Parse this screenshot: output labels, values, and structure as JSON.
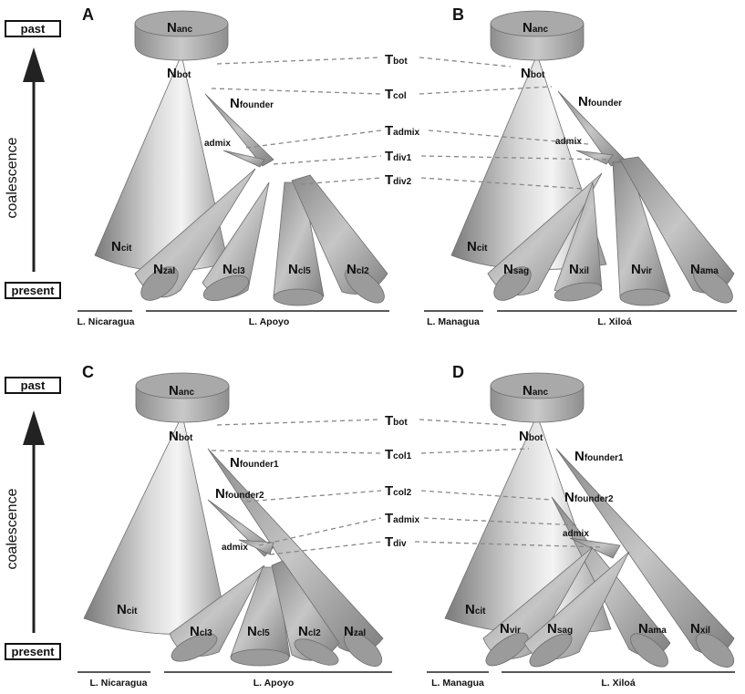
{
  "axis": {
    "top_label": "past",
    "bottom_label": "present",
    "side_label": "coalescence"
  },
  "panels": [
    {
      "letter": "A",
      "lake_left": "L. Nicaragua",
      "lake_right": "L. Apoyo",
      "anc": {
        "N": "N",
        "sub": "anc"
      },
      "bot": {
        "N": "N",
        "sub": "bot"
      },
      "founders": [
        {
          "N": "N",
          "sub": "founder"
        }
      ],
      "admix": "admix",
      "cit": {
        "N": "N",
        "sub": "cit"
      },
      "tips": [
        {
          "N": "N",
          "sub": "zal"
        },
        {
          "N": "N",
          "sub": "cl3"
        },
        {
          "N": "N",
          "sub": "cl5"
        },
        {
          "N": "N",
          "sub": "cl2"
        }
      ]
    },
    {
      "letter": "B",
      "lake_left": "L. Managua",
      "lake_right": "L. Xiloá",
      "anc": {
        "N": "N",
        "sub": "anc"
      },
      "bot": {
        "N": "N",
        "sub": "bot"
      },
      "founders": [
        {
          "N": "N",
          "sub": "founder"
        }
      ],
      "admix": "admix",
      "cit": {
        "N": "N",
        "sub": "cit"
      },
      "tips": [
        {
          "N": "N",
          "sub": "sag"
        },
        {
          "N": "N",
          "sub": "xil"
        },
        {
          "N": "N",
          "sub": "vir"
        },
        {
          "N": "N",
          "sub": "ama"
        }
      ]
    },
    {
      "letter": "C",
      "lake_left": "L. Nicaragua",
      "lake_right": "L. Apoyo",
      "anc": {
        "N": "N",
        "sub": "anc"
      },
      "bot": {
        "N": "N",
        "sub": "bot"
      },
      "founders": [
        {
          "N": "N",
          "sub": "founder1"
        },
        {
          "N": "N",
          "sub": "founder2"
        }
      ],
      "admix": "admix",
      "cit": {
        "N": "N",
        "sub": "cit"
      },
      "tips": [
        {
          "N": "N",
          "sub": "cl3"
        },
        {
          "N": "N",
          "sub": "cl5"
        },
        {
          "N": "N",
          "sub": "cl2"
        },
        {
          "N": "N",
          "sub": "zal"
        }
      ]
    },
    {
      "letter": "D",
      "lake_left": "L. Managua",
      "lake_right": "L. Xiloá",
      "anc": {
        "N": "N",
        "sub": "anc"
      },
      "bot": {
        "N": "N",
        "sub": "bot"
      },
      "founders": [
        {
          "N": "N",
          "sub": "founder1"
        },
        {
          "N": "N",
          "sub": "founder2"
        }
      ],
      "admix": "admix",
      "cit": {
        "N": "N",
        "sub": "cit"
      },
      "tips": [
        {
          "N": "N",
          "sub": "vir"
        },
        {
          "N": "N",
          "sub": "sag"
        },
        {
          "N": "N",
          "sub": "ama"
        },
        {
          "N": "N",
          "sub": "xil"
        }
      ]
    }
  ],
  "times_top": [
    {
      "T": "T",
      "sub": "bot"
    },
    {
      "T": "T",
      "sub": "col"
    },
    {
      "T": "T",
      "sub": "admix"
    },
    {
      "T": "T",
      "sub": "div1"
    },
    {
      "T": "T",
      "sub": "div2"
    }
  ],
  "times_bottom": [
    {
      "T": "T",
      "sub": "bot"
    },
    {
      "T": "T",
      "sub": "col1"
    },
    {
      "T": "T",
      "sub": "col2"
    },
    {
      "T": "T",
      "sub": "admix"
    },
    {
      "T": "T",
      "sub": "div"
    }
  ]
}
